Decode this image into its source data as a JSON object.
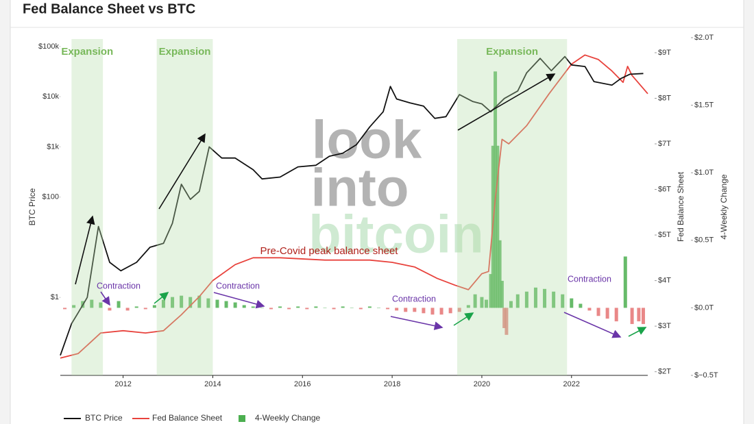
{
  "chart_data": {
    "type": "combo",
    "title": "Fed Balance Sheet vs BTC",
    "y_label": "BTC Price",
    "y2_label": "Fed Balance Sheet",
    "y3_label": "4-Weekly Change",
    "xlim": [
      2010.6,
      2023.7
    ],
    "xticks": [
      2012,
      2014,
      2016,
      2018,
      2020,
      2022
    ],
    "ylim": [
      0.028,
      150000
    ],
    "ylog": true,
    "yticks": [
      {
        "value": 1,
        "label": "$1"
      },
      {
        "value": 100,
        "label": "$100"
      },
      {
        "value": 1000,
        "label": "$1k"
      },
      {
        "value": 10000,
        "label": "$10k"
      },
      {
        "value": 100000,
        "label": "$100k"
      }
    ],
    "y2lim": [
      1.92,
      9.33
    ],
    "y2ticks": [
      {
        "value": 2,
        "label": "$2T"
      },
      {
        "value": 3,
        "label": "$3T"
      },
      {
        "value": 4,
        "label": "$4T"
      },
      {
        "value": 5,
        "label": "$5T"
      },
      {
        "value": 6,
        "label": "$6T"
      },
      {
        "value": 7,
        "label": "$7T"
      },
      {
        "value": 8,
        "label": "$8T"
      },
      {
        "value": 9,
        "label": "$9T"
      }
    ],
    "y3lim": [
      -0.5,
      2.0
    ],
    "y3ticks": [
      {
        "value": -0.5,
        "label": "$−0.5T"
      },
      {
        "value": 0,
        "label": "$0.0T"
      },
      {
        "value": 0.5,
        "label": "$0.5T"
      },
      {
        "value": 1.0,
        "label": "$1.0T"
      },
      {
        "value": 1.5,
        "label": "$1.5T"
      },
      {
        "value": 2.0,
        "label": "$2.0T"
      }
    ],
    "legend": "bottom-left",
    "series": [
      {
        "name": "BTC Price",
        "type": "line",
        "color": "#111111",
        "axis": "y",
        "x": [
          2010.6,
          2010.85,
          2011.0,
          2011.2,
          2011.45,
          2011.7,
          2011.95,
          2012.3,
          2012.6,
          2012.9,
          2013.1,
          2013.3,
          2013.5,
          2013.7,
          2013.92,
          2014.2,
          2014.5,
          2014.9,
          2015.1,
          2015.5,
          2015.9,
          2016.3,
          2016.6,
          2016.9,
          2017.2,
          2017.5,
          2017.8,
          2017.96,
          2018.1,
          2018.4,
          2018.7,
          2018.95,
          2019.2,
          2019.5,
          2019.8,
          2020.0,
          2020.2,
          2020.5,
          2020.8,
          2021.0,
          2021.3,
          2021.55,
          2021.85,
          2022.0,
          2022.3,
          2022.5,
          2022.9,
          2023.1,
          2023.3,
          2023.6
        ],
        "values": [
          0.07,
          0.3,
          0.5,
          1,
          26,
          5,
          3.4,
          5,
          10,
          12,
          30,
          180,
          90,
          130,
          1000,
          600,
          600,
          350,
          230,
          250,
          400,
          430,
          650,
          750,
          1100,
          2500,
          5000,
          16000,
          9000,
          7500,
          6500,
          3700,
          4000,
          11000,
          8000,
          7200,
          5000,
          9200,
          13000,
          30000,
          58000,
          33000,
          63000,
          43000,
          40000,
          20000,
          17000,
          23000,
          28000,
          29000
        ]
      },
      {
        "name": "Fed Balance Sheet",
        "type": "line",
        "color": "#e8423c",
        "axis": "y2",
        "x": [
          2010.6,
          2011.0,
          2011.5,
          2012.0,
          2012.5,
          2012.9,
          2013.3,
          2013.7,
          2014.0,
          2014.5,
          2014.9,
          2015.5,
          2016.5,
          2017.5,
          2018.0,
          2018.5,
          2019.0,
          2019.4,
          2019.7,
          2020.0,
          2020.15,
          2020.3,
          2020.45,
          2020.6,
          2021.0,
          2021.5,
          2022.0,
          2022.3,
          2022.6,
          2022.9,
          2023.15,
          2023.25,
          2023.35,
          2023.7
        ],
        "values": [
          2.3,
          2.4,
          2.85,
          2.9,
          2.85,
          2.9,
          3.25,
          3.65,
          4.0,
          4.35,
          4.5,
          4.5,
          4.45,
          4.45,
          4.4,
          4.3,
          4.05,
          3.9,
          3.8,
          4.15,
          4.2,
          5.8,
          7.1,
          7.0,
          7.4,
          8.1,
          8.75,
          8.95,
          8.85,
          8.6,
          8.35,
          8.7,
          8.5,
          8.1
        ]
      },
      {
        "name": "4-Weekly Change",
        "type": "bar",
        "color": "#4caf50",
        "negative_color": "#e57373",
        "axis": "y3",
        "x": [
          2010.7,
          2010.9,
          2011.1,
          2011.3,
          2011.5,
          2011.7,
          2011.9,
          2012.1,
          2012.3,
          2012.5,
          2012.7,
          2012.9,
          2013.1,
          2013.3,
          2013.5,
          2013.7,
          2013.9,
          2014.1,
          2014.3,
          2014.5,
          2014.7,
          2014.9,
          2015.1,
          2015.3,
          2015.5,
          2015.7,
          2015.9,
          2016.1,
          2016.3,
          2016.5,
          2016.7,
          2016.9,
          2017.1,
          2017.3,
          2017.5,
          2017.7,
          2017.9,
          2018.1,
          2018.3,
          2018.5,
          2018.7,
          2018.9,
          2019.1,
          2019.3,
          2019.5,
          2019.7,
          2019.85,
          2020.0,
          2020.1,
          2020.2,
          2020.25,
          2020.3,
          2020.35,
          2020.4,
          2020.45,
          2020.5,
          2020.55,
          2020.65,
          2020.8,
          2021.0,
          2021.2,
          2021.4,
          2021.6,
          2021.8,
          2022.0,
          2022.2,
          2022.4,
          2022.6,
          2022.8,
          2023.0,
          2023.2,
          2023.35,
          2023.5,
          2023.6
        ],
        "values": [
          -0.01,
          0.02,
          0.05,
          0.06,
          0.04,
          -0.02,
          0.05,
          -0.02,
          0.01,
          -0.01,
          0.02,
          0.06,
          0.08,
          0.09,
          0.08,
          0.09,
          0.07,
          0.06,
          0.05,
          0.04,
          0.02,
          0.01,
          0.0,
          -0.01,
          0.01,
          -0.01,
          0.01,
          -0.01,
          0.01,
          0.0,
          -0.01,
          0.01,
          0.0,
          -0.01,
          0.01,
          0.0,
          -0.01,
          -0.02,
          -0.03,
          -0.03,
          -0.04,
          -0.05,
          -0.05,
          -0.04,
          -0.03,
          0.02,
          0.1,
          0.08,
          0.06,
          0.25,
          1.2,
          1.75,
          1.2,
          0.5,
          0.2,
          -0.15,
          -0.2,
          0.05,
          0.1,
          0.12,
          0.15,
          0.14,
          0.12,
          0.1,
          0.07,
          0.03,
          -0.02,
          -0.06,
          -0.08,
          -0.1,
          0.38,
          -0.12,
          -0.1,
          -0.12
        ]
      }
    ],
    "shaded_periods": [
      {
        "start": 2010.85,
        "end": 2011.55,
        "label": "Expansion"
      },
      {
        "start": 2012.75,
        "end": 2014.0,
        "label": "Expansion"
      },
      {
        "start": 2019.45,
        "end": 2021.9,
        "label": "Expansion"
      }
    ],
    "annotations": [
      "Contraction",
      "Contraction",
      "Contraction",
      "Contraction",
      "Pre-Covid peak balance sheet"
    ],
    "watermark": [
      "look",
      "into",
      "bitcoin"
    ]
  }
}
